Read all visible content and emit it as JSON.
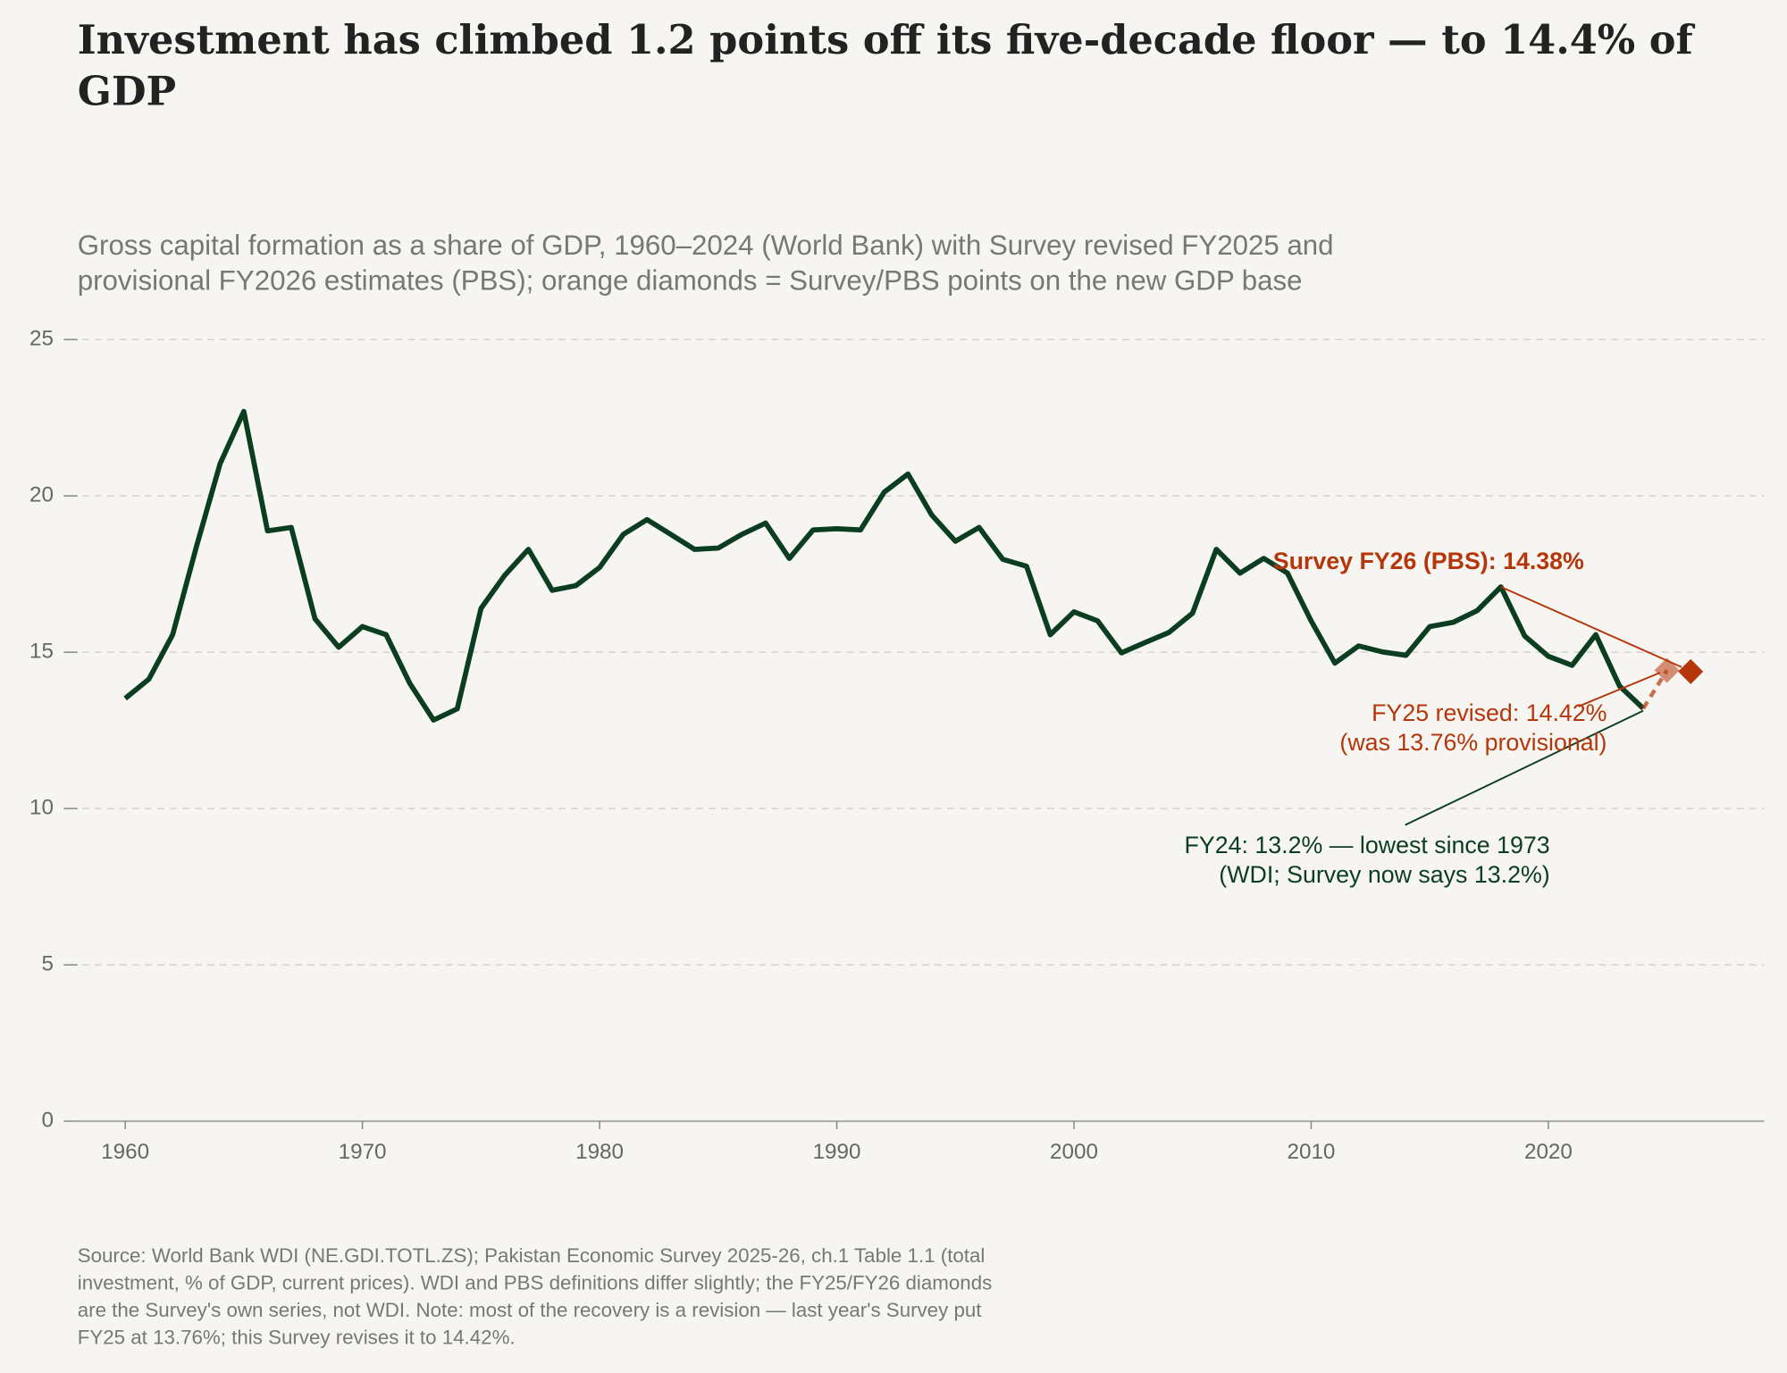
{
  "chart_data": {
    "type": "line",
    "title": [
      "Investment has climbed 1.2 points off its five-decade floor — to 14.4% of",
      "GDP"
    ],
    "subtitle": [
      "Gross capital formation as a share of GDP, 1960–2024 (World Bank) with Survey revised FY2025 and",
      "provisional FY2026 estimates (PBS); orange diamonds = Survey/PBS points on the new GDP base"
    ],
    "source": [
      "Source: World Bank WDI (NE.GDI.TOTL.ZS); Pakistan Economic Survey 2025-26, ch.1 Table 1.1 (total",
      "investment, % of GDP, current prices). WDI and PBS definitions differ slightly; the FY25/FY26 diamonds",
      "are the Survey's own series, not WDI. Note: most of the recovery is a revision — last year's Survey put",
      "FY25 at 13.76%; this Survey revises it to 14.42%."
    ],
    "x": [
      1960,
      1961,
      1962,
      1963,
      1964,
      1965,
      1966,
      1967,
      1968,
      1969,
      1970,
      1971,
      1972,
      1973,
      1974,
      1975,
      1976,
      1977,
      1978,
      1979,
      1980,
      1981,
      1982,
      1983,
      1984,
      1985,
      1986,
      1987,
      1988,
      1989,
      1990,
      1991,
      1992,
      1993,
      1994,
      1995,
      1996,
      1997,
      1998,
      1999,
      2000,
      2001,
      2002,
      2003,
      2004,
      2005,
      2006,
      2007,
      2008,
      2009,
      2010,
      2011,
      2012,
      2013,
      2014,
      2015,
      2016,
      2017,
      2018,
      2019,
      2020,
      2021,
      2022,
      2023,
      2024
    ],
    "values": [
      13.52,
      14.14,
      15.56,
      18.37,
      21.03,
      22.7,
      18.88,
      18.99,
      16.07,
      15.16,
      15.82,
      15.56,
      14.0,
      12.83,
      13.19,
      16.4,
      17.46,
      18.29,
      16.98,
      17.13,
      17.71,
      18.77,
      19.24,
      18.77,
      18.29,
      18.33,
      18.77,
      19.13,
      18.0,
      18.91,
      18.95,
      18.91,
      20.12,
      20.7,
      19.39,
      18.55,
      18.99,
      17.97,
      17.75,
      15.56,
      16.29,
      16.0,
      14.98,
      15.31,
      15.63,
      16.25,
      18.29,
      17.53,
      18.0,
      17.53,
      16.0,
      14.65,
      15.2,
      15.01,
      14.9,
      15.82,
      15.96,
      16.33,
      17.09,
      15.52,
      14.87,
      14.58,
      15.56,
      13.92,
      13.2
    ],
    "color": "#0b3d20",
    "survey_points": {
      "x": [
        2025,
        2026
      ],
      "values": [
        14.42,
        14.38
      ],
      "color": "#b5360a"
    },
    "annotations": [
      {
        "lines": [
          "Survey FY26 (PBS): 14.38%"
        ]
      },
      {
        "lines": [
          "FY25 revised: 14.42%",
          "(was 13.76% provisional)"
        ]
      },
      {
        "lines": [
          "FY24: 13.2% — lowest since 1973",
          "(WDI; Survey now says 13.2%)"
        ]
      }
    ],
    "xlim": [
      1957.7,
      2029.1
    ],
    "ylim": [
      0,
      25
    ],
    "xticks": [
      1960,
      1970,
      1980,
      1990,
      2000,
      2010,
      2020
    ],
    "yticks": [
      0,
      5,
      10,
      15,
      20,
      25
    ],
    "grid": true
  }
}
